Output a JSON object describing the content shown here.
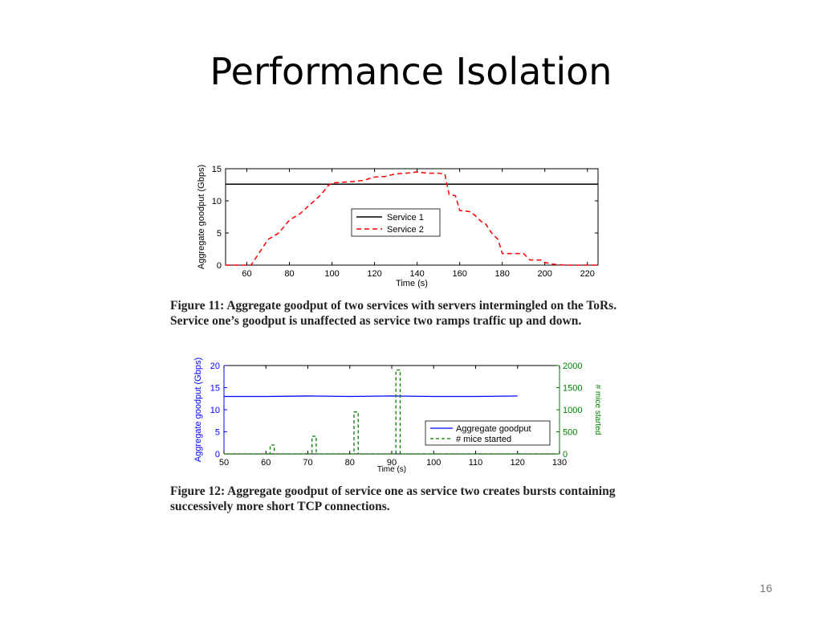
{
  "slide": {
    "title": "Performance Isolation",
    "page_number": "16"
  },
  "captions": {
    "fig11": "Figure 11: Aggregate goodput of two services with servers intermingled on the ToRs. Service one’s goodput is unaffected as service two ramps traffic up and down.",
    "fig12": "Figure 12: Aggregate goodput of service one as service two creates bursts containing successively more short TCP connections."
  },
  "colors": {
    "service1": "#000000",
    "service2": "#ff0000",
    "aggregate": "#0000ff",
    "mice": "#008000"
  },
  "chart_data": [
    {
      "type": "line",
      "xlabel": "Time (s)",
      "ylabel": "Aggregate goodput (Gbps)",
      "xlim": [
        50,
        225
      ],
      "ylim": [
        0,
        15
      ],
      "x_ticks": [
        60,
        80,
        100,
        120,
        140,
        160,
        180,
        200,
        220
      ],
      "y_ticks": [
        0,
        5,
        10,
        15
      ],
      "grid": false,
      "legend_position": "center",
      "series": [
        {
          "name": "Service 1",
          "style": "solid",
          "x": [
            50,
            100,
            150,
            225
          ],
          "y": [
            12.6,
            12.6,
            12.6,
            12.6
          ]
        },
        {
          "name": "Service 2",
          "style": "dashed",
          "x": [
            50,
            62,
            64,
            70,
            75,
            80,
            85,
            90,
            95,
            98,
            100,
            110,
            115,
            120,
            125,
            130,
            135,
            140,
            145,
            150,
            153,
            155,
            158,
            160,
            163,
            165,
            168,
            170,
            172,
            175,
            178,
            180,
            185,
            190,
            193,
            195,
            198,
            200,
            205,
            210,
            225
          ],
          "y": [
            0,
            0,
            1,
            4,
            5,
            7,
            8,
            9.5,
            11,
            12.3,
            12.8,
            13,
            13.2,
            13.7,
            13.8,
            14.2,
            14.3,
            14.5,
            14.3,
            14.3,
            14.2,
            11,
            10.8,
            8.5,
            8.4,
            8.3,
            7.5,
            6.8,
            6.5,
            5,
            4,
            1.8,
            1.8,
            1.8,
            0.8,
            0.8,
            0.8,
            0.4,
            0.1,
            0,
            0
          ]
        }
      ]
    },
    {
      "type": "line",
      "xlabel": "Time (s)",
      "ylabel": "Aggregate goodput (Gbps)",
      "y2label": "# mice started",
      "xlim": [
        50,
        130
      ],
      "ylim": [
        0,
        20
      ],
      "y2lim": [
        0,
        2000
      ],
      "x_ticks": [
        50,
        60,
        70,
        80,
        90,
        100,
        110,
        120,
        130
      ],
      "y_ticks": [
        0,
        5,
        10,
        15,
        20
      ],
      "y2_ticks": [
        0,
        500,
        1000,
        1500,
        2000
      ],
      "grid": false,
      "legend_position": "lower-right",
      "series": [
        {
          "name": "Aggregate goodput",
          "style": "solid",
          "axis": "left",
          "x": [
            50,
            60,
            70,
            80,
            90,
            100,
            110,
            120
          ],
          "y": [
            13,
            13,
            13.1,
            13,
            13.1,
            13,
            13,
            13.1
          ]
        },
        {
          "name": "# mice started",
          "style": "dashed",
          "axis": "right",
          "x": [
            50,
            61,
            61,
            62,
            62,
            71,
            71,
            72,
            72,
            81,
            81,
            82,
            82,
            91,
            91,
            92,
            92,
            130
          ],
          "y": [
            0,
            0,
            200,
            200,
            0,
            0,
            400,
            400,
            0,
            0,
            950,
            950,
            0,
            0,
            1900,
            1900,
            0,
            0
          ]
        }
      ]
    }
  ]
}
